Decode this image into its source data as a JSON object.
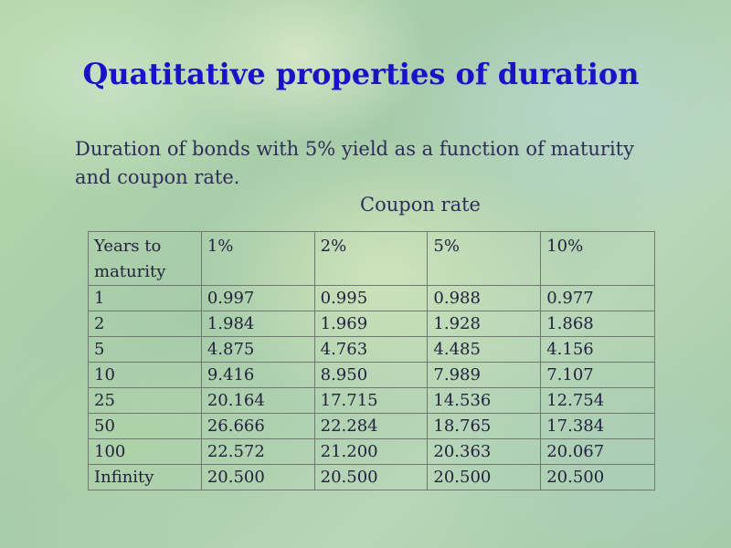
{
  "slide": {
    "title": "Quatitative properties of duration",
    "caption_line1": "Duration of bonds with 5% yield as a function of maturity",
    "caption_line2": "and coupon rate.",
    "coupon_label": "Coupon rate"
  },
  "table": {
    "headers": [
      "Years to maturity",
      "1%",
      "2%",
      "5%",
      "10%"
    ],
    "rows": [
      [
        "1",
        "0.997",
        "0.995",
        "0.988",
        "0.977"
      ],
      [
        "2",
        "1.984",
        "1.969",
        "1.928",
        "1.868"
      ],
      [
        "5",
        "4.875",
        "4.763",
        "4.485",
        "4.156"
      ],
      [
        "10",
        "9.416",
        "8.950",
        "7.989",
        "7.107"
      ],
      [
        "25",
        "20.164",
        "17.715",
        "14.536",
        "12.754"
      ],
      [
        "50",
        "26.666",
        "22.284",
        "18.765",
        "17.384"
      ],
      [
        "100",
        "22.572",
        "21.200",
        "20.363",
        "20.067"
      ],
      [
        "Infinity",
        "20.500",
        "20.500",
        "20.500",
        "20.500"
      ]
    ]
  },
  "colors": {
    "title": "#1b12c8",
    "text": "#2e2e58",
    "background": "#a9cda0"
  }
}
